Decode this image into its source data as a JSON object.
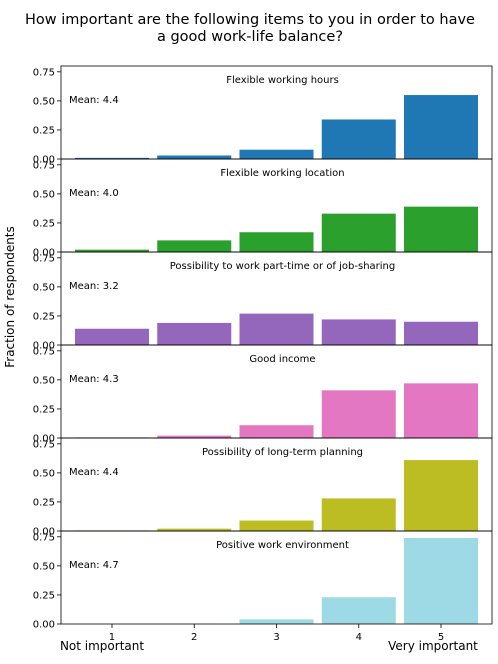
{
  "chart_data": {
    "type": "bar",
    "title_lines": [
      "How important are the following items to you in order to have",
      "a good work-life balance?"
    ],
    "ylabel": "Fraction of respondents",
    "categories": [
      "1",
      "2",
      "3",
      "4",
      "5"
    ],
    "xlabel_left": "Not important",
    "xlabel_right": "Very important",
    "ylim": [
      0,
      0.8
    ],
    "yticks": [
      "0.00",
      "0.25",
      "0.50",
      "0.75"
    ],
    "grid": false,
    "panels": [
      {
        "title": "Flexible working hours",
        "mean_label": "Mean: 4.4",
        "color": "#1f77b4",
        "values": [
          0.01,
          0.03,
          0.08,
          0.34,
          0.55
        ]
      },
      {
        "title": "Flexible working location",
        "mean_label": "Mean: 4.0",
        "color": "#2ca02c",
        "values": [
          0.02,
          0.1,
          0.17,
          0.33,
          0.39
        ]
      },
      {
        "title": "Possibility to work part-time or of job-sharing",
        "mean_label": "Mean: 3.2",
        "color": "#9467bd",
        "values": [
          0.14,
          0.19,
          0.27,
          0.22,
          0.2
        ]
      },
      {
        "title": "Good income",
        "mean_label": "Mean: 4.3",
        "color": "#e377c2",
        "values": [
          0.005,
          0.02,
          0.11,
          0.41,
          0.47
        ]
      },
      {
        "title": "Possibility of long-term planning",
        "mean_label": "Mean: 4.4",
        "color": "#bcbd22",
        "values": [
          0.005,
          0.02,
          0.09,
          0.28,
          0.61
        ]
      },
      {
        "title": "Positive work environment",
        "mean_label": "Mean: 4.7",
        "color": "#9edae5",
        "values": [
          0.0,
          0.0,
          0.04,
          0.23,
          0.74
        ]
      }
    ]
  }
}
